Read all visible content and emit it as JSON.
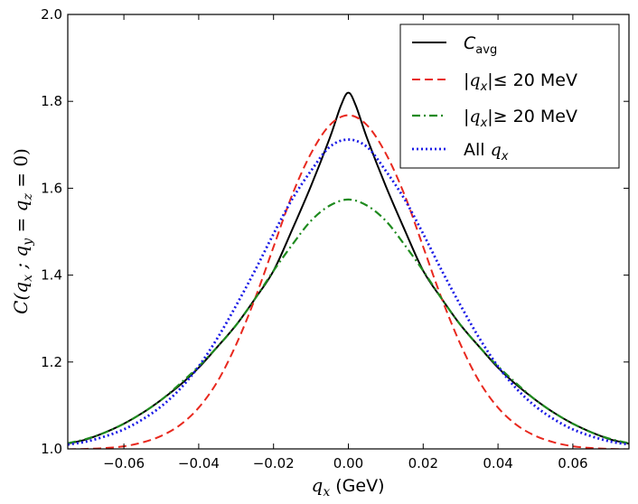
{
  "chart_data": {
    "type": "line",
    "title": "",
    "xlabel": "q_x  (GeV)",
    "ylabel": "C(q_x ; q_y = q_z = 0)",
    "xlim": [
      -0.075,
      0.075
    ],
    "ylim": [
      1.0,
      2.0
    ],
    "xticks": [
      -0.06,
      -0.04,
      -0.02,
      0.0,
      0.02,
      0.04,
      0.06
    ],
    "xtick_labels": [
      "−0.06",
      "−0.04",
      "−0.02",
      "0.00",
      "0.02",
      "0.04",
      "0.06"
    ],
    "yticks": [
      1.0,
      1.2,
      1.4,
      1.6,
      1.8,
      2.0
    ],
    "ytick_labels": [
      "1.0",
      "1.2",
      "1.4",
      "1.6",
      "1.8",
      "2.0"
    ],
    "legend_position": "top-right",
    "grid": false,
    "series": [
      {
        "name": "C_avg",
        "legend_label": "C",
        "legend_subscript": "avg",
        "color": "#000000",
        "style": "solid",
        "x": [
          -0.075,
          -0.07,
          -0.065,
          -0.06,
          -0.055,
          -0.05,
          -0.045,
          -0.04,
          -0.035,
          -0.03,
          -0.025,
          -0.02,
          -0.015,
          -0.01,
          -0.005,
          -0.002,
          0.0,
          0.002,
          0.005,
          0.01,
          0.015,
          0.02,
          0.025,
          0.03,
          0.035,
          0.04,
          0.045,
          0.05,
          0.055,
          0.06,
          0.065,
          0.07,
          0.075
        ],
        "values": [
          1.012,
          1.022,
          1.038,
          1.058,
          1.083,
          1.113,
          1.147,
          1.187,
          1.235,
          1.285,
          1.345,
          1.41,
          1.505,
          1.605,
          1.715,
          1.79,
          1.82,
          1.79,
          1.715,
          1.605,
          1.505,
          1.41,
          1.345,
          1.285,
          1.235,
          1.187,
          1.147,
          1.113,
          1.083,
          1.058,
          1.038,
          1.022,
          1.012
        ]
      },
      {
        "name": "|q_x| <= 20 MeV",
        "legend_label": "|q_x| ≤ 20 MeV",
        "color": "#e8281e",
        "style": "dashed",
        "x": [
          -0.075,
          -0.07,
          -0.065,
          -0.06,
          -0.055,
          -0.05,
          -0.045,
          -0.04,
          -0.035,
          -0.03,
          -0.025,
          -0.02,
          -0.015,
          -0.01,
          -0.005,
          0.0,
          0.005,
          0.01,
          0.015,
          0.02,
          0.025,
          0.03,
          0.035,
          0.04,
          0.045,
          0.05,
          0.055,
          0.06,
          0.065,
          0.07,
          0.075
        ],
        "values": [
          0.999,
          1.0,
          1.002,
          1.006,
          1.015,
          1.03,
          1.055,
          1.095,
          1.155,
          1.24,
          1.345,
          1.465,
          1.585,
          1.68,
          1.745,
          1.768,
          1.745,
          1.68,
          1.585,
          1.465,
          1.345,
          1.24,
          1.155,
          1.095,
          1.055,
          1.03,
          1.015,
          1.006,
          1.002,
          1.0,
          0.999
        ]
      },
      {
        "name": "|q_x| >= 20 MeV",
        "legend_label": "|q_x| ≥ 20 MeV",
        "color": "#1e8a1e",
        "style": "dashdot",
        "x": [
          -0.075,
          -0.07,
          -0.065,
          -0.06,
          -0.055,
          -0.05,
          -0.045,
          -0.04,
          -0.035,
          -0.03,
          -0.025,
          -0.02,
          -0.015,
          -0.01,
          -0.005,
          0.0,
          0.005,
          0.01,
          0.015,
          0.02,
          0.025,
          0.03,
          0.035,
          0.04,
          0.045,
          0.05,
          0.055,
          0.06,
          0.065,
          0.07,
          0.075
        ],
        "values": [
          1.013,
          1.023,
          1.038,
          1.058,
          1.083,
          1.113,
          1.15,
          1.19,
          1.235,
          1.285,
          1.345,
          1.41,
          1.47,
          1.525,
          1.56,
          1.574,
          1.56,
          1.525,
          1.47,
          1.41,
          1.345,
          1.285,
          1.235,
          1.19,
          1.15,
          1.113,
          1.083,
          1.058,
          1.038,
          1.023,
          1.013
        ]
      },
      {
        "name": "All q_x",
        "legend_label": "All q_x",
        "color": "#1a1ae6",
        "style": "dotted",
        "x": [
          -0.075,
          -0.07,
          -0.065,
          -0.06,
          -0.055,
          -0.05,
          -0.045,
          -0.04,
          -0.035,
          -0.03,
          -0.025,
          -0.02,
          -0.015,
          -0.01,
          -0.005,
          0.0,
          0.005,
          0.01,
          0.015,
          0.02,
          0.025,
          0.03,
          0.035,
          0.04,
          0.045,
          0.05,
          0.055,
          0.06,
          0.065,
          0.07,
          0.075
        ],
        "values": [
          1.01,
          1.017,
          1.029,
          1.045,
          1.068,
          1.098,
          1.138,
          1.19,
          1.255,
          1.33,
          1.41,
          1.495,
          1.575,
          1.64,
          1.695,
          1.712,
          1.695,
          1.64,
          1.575,
          1.495,
          1.41,
          1.33,
          1.255,
          1.19,
          1.138,
          1.098,
          1.068,
          1.045,
          1.029,
          1.017,
          1.01
        ]
      }
    ]
  }
}
